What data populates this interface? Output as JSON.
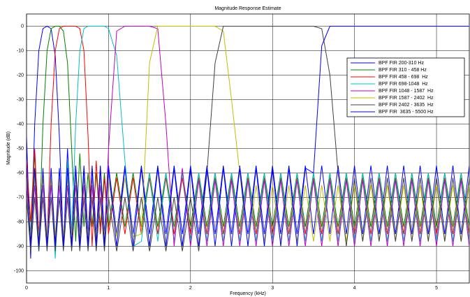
{
  "chart_data": {
    "type": "line",
    "title": "Magnitude Response Estimate",
    "xlabel": "Frequency (kHz)",
    "ylabel": "Magnitude (dB)",
    "x": [
      0,
      0.05,
      0.1,
      0.15,
      0.2,
      0.25,
      0.3,
      0.35,
      0.4,
      0.45,
      0.5,
      0.55,
      0.6,
      0.65,
      0.7,
      0.75,
      0.8,
      0.85,
      0.9,
      0.95,
      1.0,
      1.1,
      1.2,
      1.3,
      1.4,
      1.5,
      1.6,
      1.7,
      1.8,
      1.9,
      2.0,
      2.1,
      2.2,
      2.3,
      2.4,
      2.5,
      2.6,
      2.7,
      2.8,
      2.9,
      3.0,
      3.1,
      3.2,
      3.3,
      3.4,
      3.5,
      3.6,
      3.7,
      3.8,
      3.9,
      4.0,
      4.1,
      4.2,
      4.3,
      4.4,
      4.5,
      4.6,
      4.7,
      4.8,
      4.9,
      5.0,
      5.1,
      5.2,
      5.3,
      5.4
    ],
    "series": [
      {
        "name": "BPF FIR 200-310 Hz",
        "color": "#0000ff",
        "values": [
          -45,
          -95,
          -40,
          -10,
          -1,
          0,
          -1,
          -12,
          -45,
          -90,
          -50,
          -85,
          -57,
          -85,
          -57,
          -85,
          -57,
          -85,
          -57,
          -85,
          -57,
          -85,
          -57,
          -85,
          -57,
          -85,
          -57,
          -85,
          -57,
          -85,
          -57,
          -85,
          -57,
          -85,
          -57,
          -85,
          -57,
          -85,
          -57,
          -85,
          -57,
          -85,
          -57,
          -85,
          -57,
          -85,
          -57,
          -85,
          -57,
          -85,
          -57,
          -85,
          -57,
          -85,
          -57,
          -85,
          -57,
          -85,
          -57,
          -85,
          -57,
          -85,
          -57,
          -85,
          -57
        ]
      },
      {
        "name": "BPF FIR 310 - 458 Hz",
        "color": "#008000",
        "values": [
          -60,
          -85,
          -52,
          -90,
          -40,
          -10,
          -1,
          0,
          0,
          -2,
          -15,
          -50,
          -88,
          -52,
          -82,
          -60,
          -82,
          -60,
          -82,
          -60,
          -82,
          -60,
          -82,
          -60,
          -82,
          -60,
          -82,
          -60,
          -82,
          -60,
          -82,
          -60,
          -82,
          -60,
          -82,
          -60,
          -82,
          -60,
          -82,
          -60,
          -82,
          -60,
          -82,
          -60,
          -82,
          -60,
          -82,
          -60,
          -82,
          -60,
          -82,
          -60,
          -82,
          -60,
          -82,
          -60,
          -82,
          -60,
          -82,
          -60,
          -82,
          -60,
          -82,
          -60,
          -82
        ]
      },
      {
        "name": "BPF FIR 458 - 698  Hz",
        "color": "#ff0000",
        "values": [
          -55,
          -80,
          -50,
          -85,
          -60,
          -88,
          -40,
          -10,
          -1,
          0,
          0,
          0,
          0,
          -1,
          -10,
          -45,
          -90,
          -55,
          -85,
          -62,
          -85,
          -62,
          -85,
          -62,
          -85,
          -62,
          -85,
          -62,
          -85,
          -62,
          -85,
          -62,
          -85,
          -62,
          -85,
          -62,
          -85,
          -62,
          -85,
          -62,
          -85,
          -62,
          -85,
          -62,
          -85,
          -62,
          -85,
          -62,
          -85,
          -62,
          -85,
          -62,
          -85,
          -62,
          -85,
          -62,
          -85,
          -62,
          -85,
          -62,
          -85,
          -62,
          -85,
          -62,
          -85
        ]
      },
      {
        "name": "BPF FIR 698-1048  Hz",
        "color": "#00bfbf",
        "values": [
          -70,
          -90,
          -60,
          -92,
          -65,
          -88,
          -58,
          -95,
          -62,
          -90,
          -55,
          -85,
          -40,
          -10,
          -1,
          0,
          0,
          0,
          0,
          0,
          -1,
          -12,
          -55,
          -90,
          -88,
          -60,
          -88,
          -60,
          -88,
          -60,
          -88,
          -60,
          -88,
          -60,
          -88,
          -60,
          -88,
          -60,
          -88,
          -60,
          -88,
          -60,
          -88,
          -60,
          -88,
          -60,
          -88,
          -60,
          -88,
          -60,
          -88,
          -60,
          -88,
          -60,
          -88,
          -60,
          -88,
          -60,
          -88,
          -60,
          -88,
          -60,
          -88,
          -60,
          -88
        ]
      },
      {
        "name": "BPF FIR 1048 - 1587  Hz",
        "color": "#bf00bf",
        "values": [
          -65,
          -88,
          -65,
          -88,
          -65,
          -88,
          -65,
          -88,
          -65,
          -88,
          -65,
          -88,
          -65,
          -88,
          -65,
          -88,
          -65,
          -88,
          -65,
          -88,
          -50,
          -2,
          0,
          0,
          0,
          0,
          -1,
          -40,
          -90,
          -58,
          -90,
          -63,
          -90,
          -63,
          -90,
          -63,
          -90,
          -63,
          -90,
          -63,
          -90,
          -63,
          -90,
          -63,
          -90,
          -63,
          -90,
          -63,
          -90,
          -63,
          -90,
          -63,
          -90,
          -63,
          -90,
          -63,
          -90,
          -63,
          -90,
          -63,
          -90,
          -63,
          -90,
          -63,
          -90
        ]
      },
      {
        "name": "BPF FIR 1587 - 2402  Hz",
        "color": "#bfbf00",
        "values": [
          -62,
          -86,
          -62,
          -86,
          -62,
          -86,
          -62,
          -86,
          -62,
          -86,
          -62,
          -86,
          -62,
          -86,
          -62,
          -86,
          -62,
          -86,
          -62,
          -86,
          -62,
          -86,
          -62,
          -86,
          -85,
          -15,
          0,
          0,
          0,
          0,
          0,
          0,
          0,
          0,
          -2,
          -30,
          -60,
          -90,
          -65,
          -88,
          -65,
          -88,
          -65,
          -88,
          -65,
          -88,
          -65,
          -88,
          -65,
          -88,
          -65,
          -88,
          -65,
          -88,
          -65,
          -88,
          -65,
          -88,
          -65,
          -88,
          -65,
          -88,
          -65,
          -88,
          -65
        ]
      },
      {
        "name": "BPF FIR 2402 - 3635  Hz",
        "color": "#404040",
        "values": [
          -70,
          -92,
          -70,
          -92,
          -70,
          -92,
          -70,
          -92,
          -70,
          -92,
          -70,
          -92,
          -70,
          -92,
          -70,
          -92,
          -70,
          -92,
          -70,
          -92,
          -70,
          -92,
          -70,
          -92,
          -70,
          -92,
          -70,
          -92,
          -70,
          -92,
          -70,
          -92,
          -60,
          -15,
          0,
          0,
          0,
          0,
          0,
          0,
          0,
          0,
          0,
          0,
          0,
          0,
          -1,
          -20,
          -60,
          -90,
          -62,
          -88,
          -62,
          -88,
          -62,
          -88,
          -62,
          -88,
          -62,
          -88,
          -62,
          -88,
          -62,
          -88,
          -62
        ]
      },
      {
        "name": "BPF FIR  3635 - 5500 Hz",
        "color": "#0000ff",
        "values": [
          -58,
          -90,
          -58,
          -90,
          -58,
          -90,
          -58,
          -90,
          -58,
          -90,
          -58,
          -90,
          -58,
          -90,
          -58,
          -90,
          -58,
          -90,
          -58,
          -90,
          -58,
          -90,
          -58,
          -90,
          -58,
          -90,
          -58,
          -90,
          -58,
          -90,
          -58,
          -90,
          -58,
          -90,
          -58,
          -90,
          -58,
          -90,
          -58,
          -90,
          -58,
          -90,
          -58,
          -90,
          -58,
          -60,
          -8,
          0,
          0,
          0,
          0,
          0,
          0,
          0,
          0,
          0,
          0,
          0,
          0,
          0,
          0,
          0,
          0,
          0,
          0
        ]
      }
    ],
    "xlim": [
      0,
      5.4
    ],
    "xticks": [
      0,
      1,
      2,
      3,
      4,
      5
    ],
    "ylim": [
      -105,
      5
    ],
    "yticks": [
      0,
      -10,
      -20,
      -30,
      -40,
      -50,
      -60,
      -70,
      -80,
      -90,
      -100
    ],
    "grid": true,
    "legend": "upper right"
  }
}
